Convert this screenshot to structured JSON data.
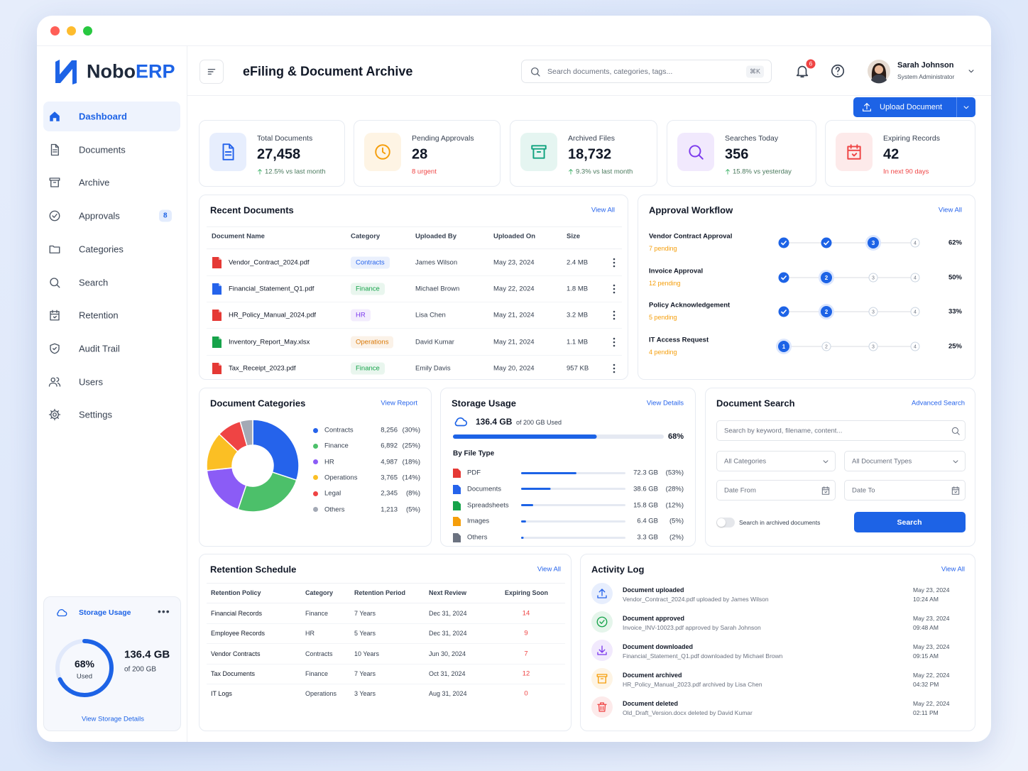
{
  "brand": {
    "name": "Nobo",
    "accent": "ERP"
  },
  "sidebar": {
    "nav": [
      {
        "label": "Dashboard",
        "active": true
      },
      {
        "label": "Documents"
      },
      {
        "label": "Archive"
      },
      {
        "label": "Approvals",
        "badge": "8"
      },
      {
        "label": "Categories"
      },
      {
        "label": "Search"
      },
      {
        "label": "Retention"
      },
      {
        "label": "Audit Trail"
      },
      {
        "label": "Users"
      },
      {
        "label": "Settings"
      }
    ],
    "storage": {
      "title": "Storage Usage",
      "percent": 68,
      "percent_label": "68%",
      "percent_caption": "Used",
      "amount": "136.4 GB",
      "capacity": "of 200 GB",
      "link": "View Storage Details"
    }
  },
  "header": {
    "title": "eFiling & Document Archive",
    "search_placeholder": "Search documents, categories, tags...",
    "shortcut": "⌘K",
    "notifications": "6",
    "user_name": "Sarah Johnson",
    "user_role": "System Administrator",
    "upload_button": "Upload Document"
  },
  "stats": [
    {
      "label": "Total Documents",
      "value": "27,458",
      "note": "12.5% vs last month",
      "trend": "up",
      "color": "#2563eb"
    },
    {
      "label": "Pending Approvals",
      "value": "28",
      "note": "8 urgent",
      "trend": "alert",
      "color": "#f59e0b"
    },
    {
      "label": "Archived Files",
      "value": "18,732",
      "note": "9.3% vs last month",
      "trend": "up",
      "color": "#10a37f"
    },
    {
      "label": "Searches Today",
      "value": "356",
      "note": "15.8% vs yesterday",
      "trend": "up",
      "color": "#7c3aed"
    },
    {
      "label": "Expiring Records",
      "value": "42",
      "note": "In next 90 days",
      "trend": "alert",
      "color": "#ef4444"
    }
  ],
  "recent_documents": {
    "title": "Recent Documents",
    "link": "View All",
    "columns": [
      "Document Name",
      "Category",
      "Uploaded By",
      "Uploaded On",
      "Size"
    ],
    "rows": [
      {
        "name": "Vendor_Contract_2024.pdf",
        "category": "Contracts",
        "by": "James Wilson",
        "date": "May 23, 2024",
        "size": "2.4 MB",
        "icon_color": "#e53935",
        "tag_color": "#2563eb"
      },
      {
        "name": "Financial_Statement_Q1.pdf",
        "category": "Finance",
        "by": "Michael Brown",
        "date": "May 22, 2024",
        "size": "1.8 MB",
        "icon_color": "#2563eb",
        "tag_color": "#16a34a"
      },
      {
        "name": "HR_Policy_Manual_2024.pdf",
        "category": "HR",
        "by": "Lisa Chen",
        "date": "May 21, 2024",
        "size": "3.2 MB",
        "icon_color": "#e53935",
        "tag_color": "#7c3aed"
      },
      {
        "name": "Inventory_Report_May.xlsx",
        "category": "Operations",
        "by": "David Kumar",
        "date": "May 21, 2024",
        "size": "1.1 MB",
        "icon_color": "#16a34a",
        "tag_color": "#d97706"
      },
      {
        "name": "Tax_Receipt_2023.pdf",
        "category": "Finance",
        "by": "Emily Davis",
        "date": "May 20, 2024",
        "size": "957 KB",
        "icon_color": "#e53935",
        "tag_color": "#16a34a"
      }
    ]
  },
  "approval_workflow": {
    "title": "Approval Workflow",
    "link": "View All",
    "steps": [
      1,
      2,
      3,
      4
    ],
    "items": [
      {
        "name": "Vendor Contract Approval",
        "pending": "7 pending",
        "step": 3,
        "progress": "62%"
      },
      {
        "name": "Invoice Approval",
        "pending": "12 pending",
        "step": 2,
        "progress": "50%"
      },
      {
        "name": "Policy Acknowledgement",
        "pending": "5 pending",
        "step": 2,
        "progress": "33%"
      },
      {
        "name": "IT Access Request",
        "pending": "4 pending",
        "step": 1,
        "progress": "25%"
      }
    ]
  },
  "categories": {
    "title": "Document Categories",
    "link": "View Report",
    "items": [
      {
        "name": "Contracts",
        "value": 8256,
        "value_label": "8,256",
        "share_label": "(30%)",
        "color": "#2563eb"
      },
      {
        "name": "Finance",
        "value": 6892,
        "value_label": "6,892",
        "share_label": "(25%)",
        "color": "#4cc06a"
      },
      {
        "name": "HR",
        "value": 4987,
        "value_label": "4,987",
        "share_label": "(18%)",
        "color": "#8b5cf6"
      },
      {
        "name": "Operations",
        "value": 3765,
        "value_label": "3,765",
        "share_label": "(14%)",
        "color": "#fbbf24"
      },
      {
        "name": "Legal",
        "value": 2345,
        "value_label": "2,345",
        "share_label": "(8%)",
        "color": "#ef4444"
      },
      {
        "name": "Others",
        "value": 1213,
        "value_label": "1,213",
        "share_label": "(5%)",
        "color": "#a3a9b5"
      }
    ]
  },
  "storage": {
    "title": "Storage Usage",
    "link": "View Details",
    "used": 136.4,
    "used_label": "136.4 GB",
    "capacity": 200,
    "capacity_label": "of 200 GB Used",
    "percent_label": "68%",
    "by_type_title": "By File Type",
    "types": [
      {
        "name": "PDF",
        "value": 72.3,
        "value_label": "72.3 GB",
        "share_label": "(53%)",
        "color": "#e53935"
      },
      {
        "name": "Documents",
        "value": 38.6,
        "value_label": "38.6 GB",
        "share_label": "(28%)",
        "color": "#2563eb"
      },
      {
        "name": "Spreadsheets",
        "value": 15.8,
        "value_label": "15.8 GB",
        "share_label": "(12%)",
        "color": "#16a34a"
      },
      {
        "name": "Images",
        "value": 6.4,
        "value_label": "6.4 GB",
        "share_label": "(5%)",
        "color": "#f59e0b"
      },
      {
        "name": "Others",
        "value": 3.3,
        "value_label": "3.3 GB",
        "share_label": "(2%)",
        "color": "#6b7280"
      }
    ]
  },
  "document_search": {
    "title": "Document Search",
    "link": "Advanced Search",
    "placeholder": "Search by keyword, filename, content...",
    "category_select": "All Categories",
    "type_select": "All Document Types",
    "date_from": "Date From",
    "date_to": "Date To",
    "archived_toggle": "Search in archived documents",
    "button": "Search"
  },
  "retention": {
    "title": "Retention Schedule",
    "link": "View All",
    "columns": [
      "Retention Policy",
      "Category",
      "Retention Period",
      "Next Review",
      "Expiring Soon"
    ],
    "rows": [
      [
        "Financial Records",
        "Finance",
        "7 Years",
        "Dec 31, 2024",
        "14"
      ],
      [
        "Employee Records",
        "HR",
        "5 Years",
        "Dec 31, 2024",
        "9"
      ],
      [
        "Vendor Contracts",
        "Contracts",
        "10 Years",
        "Jun 30, 2024",
        "7"
      ],
      [
        "Tax Documents",
        "Finance",
        "7 Years",
        "Oct 31, 2024",
        "12"
      ],
      [
        "IT Logs",
        "Operations",
        "3 Years",
        "Aug 31, 2024",
        "0"
      ]
    ]
  },
  "activity": {
    "title": "Activity Log",
    "link": "View All",
    "items": [
      {
        "title": "Document uploaded",
        "desc": "Vendor_Contract_2024.pdf uploaded by James Wilson",
        "date": "May 23, 2024",
        "time": "10:24 AM",
        "color": "#2563eb"
      },
      {
        "title": "Document approved",
        "desc": "Invoice_INV-10023.pdf approved by Sarah Johnson",
        "date": "May 23, 2024",
        "time": "09:48 AM",
        "color": "#16a34a"
      },
      {
        "title": "Document downloaded",
        "desc": "Financial_Statement_Q1.pdf downloaded by Michael Brown",
        "date": "May 23, 2024",
        "time": "09:15 AM",
        "color": "#7c3aed"
      },
      {
        "title": "Document archived",
        "desc": "HR_Policy_Manual_2023.pdf archived by Lisa Chen",
        "date": "May 22, 2024",
        "time": "04:32 PM",
        "color": "#f59e0b"
      },
      {
        "title": "Document deleted",
        "desc": "Old_Draft_Version.docx deleted by David Kumar",
        "date": "May 22, 2024",
        "time": "02:11 PM",
        "color": "#ef4444"
      }
    ]
  }
}
